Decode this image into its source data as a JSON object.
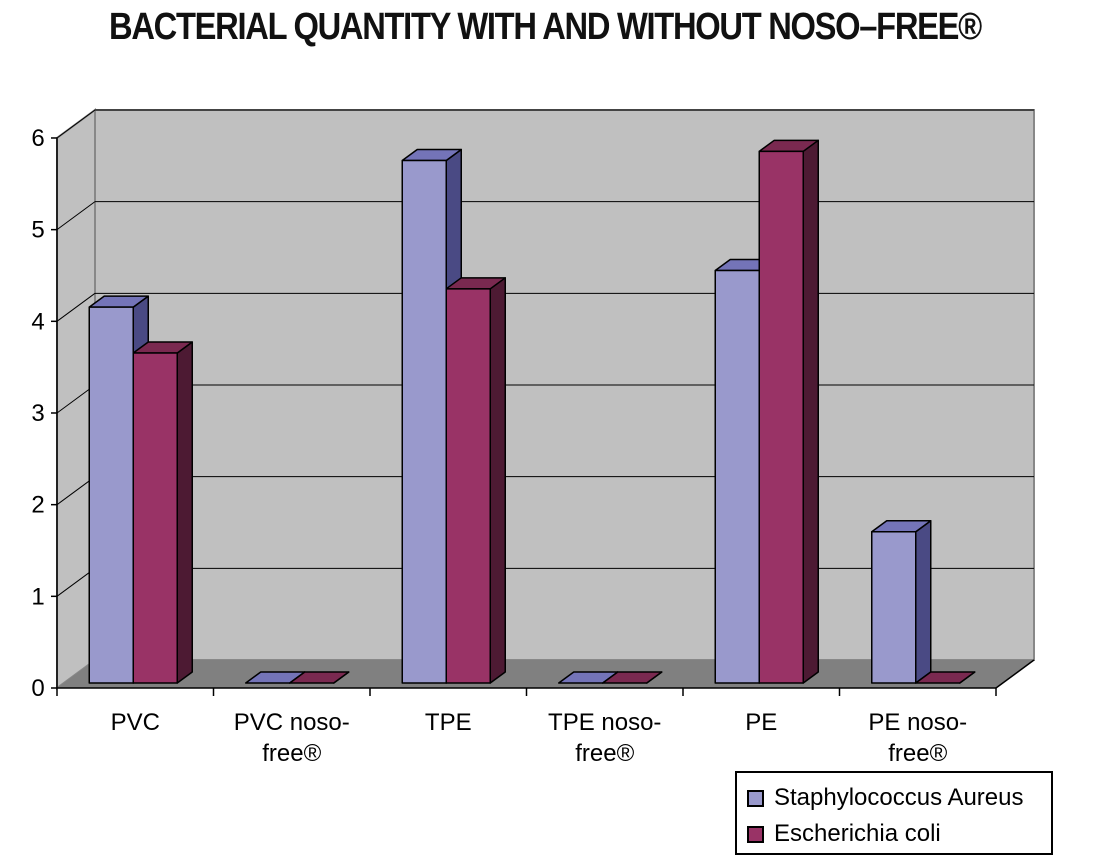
{
  "chart_data": {
    "type": "bar",
    "title": "BACTERIAL QUANTITY WITH AND WITHOUT NOSO–FREE®",
    "categories": [
      [
        "PVC"
      ],
      [
        "PVC noso-",
        "free®"
      ],
      [
        "TPE"
      ],
      [
        "TPE noso-",
        "free®"
      ],
      [
        "PE"
      ],
      [
        "PE noso-",
        "free®"
      ]
    ],
    "series": [
      {
        "name": "Staphylococcus Aureus",
        "values": [
          4.1,
          0,
          5.7,
          0,
          4.5,
          1.65
        ],
        "colors": {
          "front": "#9999cc",
          "top": "#7474b8",
          "side": "#4a4a84"
        }
      },
      {
        "name": "Escherichia coli",
        "values": [
          3.6,
          0,
          4.3,
          0,
          5.8,
          0
        ],
        "colors": {
          "front": "#993366",
          "top": "#7a2950",
          "side": "#4d1a33"
        }
      }
    ],
    "yticks": [
      "0",
      "1",
      "2",
      "3",
      "4",
      "5",
      "6"
    ],
    "ylim": [
      0,
      6
    ],
    "grid": true,
    "legend_position": "bottom-right",
    "xlabel": "",
    "ylabel": "",
    "colors": {
      "wall": "#c0c0c0",
      "floor": "#808080",
      "gridline": "#000000"
    }
  }
}
